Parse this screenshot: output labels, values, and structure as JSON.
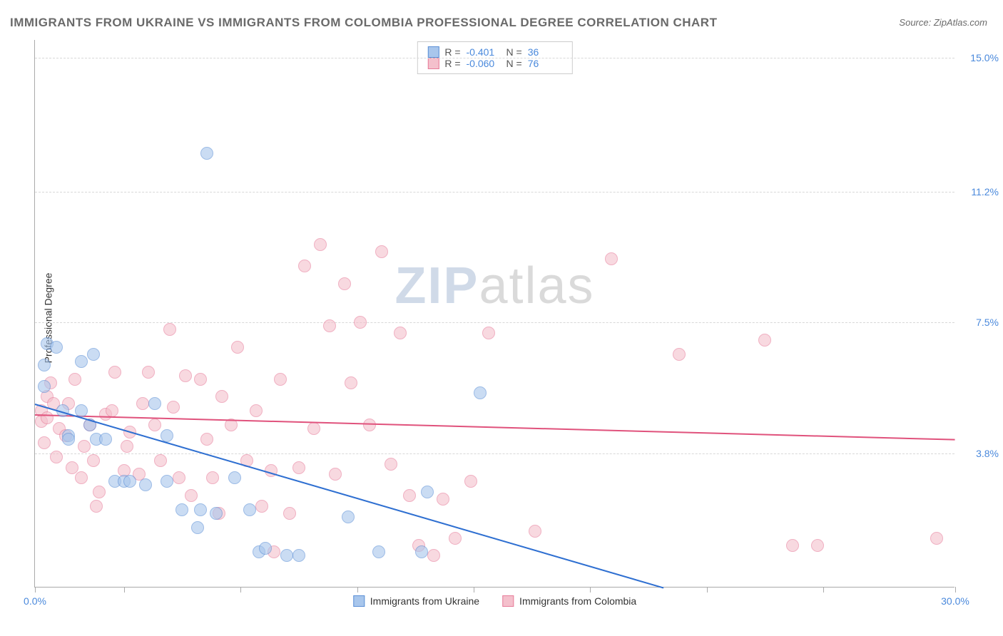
{
  "title": "IMMIGRANTS FROM UKRAINE VS IMMIGRANTS FROM COLOMBIA PROFESSIONAL DEGREE CORRELATION CHART",
  "source_label": "Source:",
  "source_name": "ZipAtlas.com",
  "ylabel": "Professional Degree",
  "watermark": {
    "part1": "ZIP",
    "part2": "atlas"
  },
  "chart": {
    "type": "scatter",
    "background_color": "#ffffff",
    "grid_color": "#d8d8d8",
    "axis_color": "#aaaaaa",
    "xlim": [
      0.0,
      30.0
    ],
    "ylim": [
      0.0,
      15.5
    ],
    "x_ticks": [
      0.0,
      2.9,
      6.7,
      10.5,
      14.3,
      18.1,
      21.9,
      25.7,
      30.0
    ],
    "x_labels": [
      {
        "v": 0.0,
        "t": "0.0%"
      },
      {
        "v": 30.0,
        "t": "30.0%"
      }
    ],
    "y_gridlines": [
      {
        "v": 3.8,
        "t": "3.8%"
      },
      {
        "v": 7.5,
        "t": "7.5%"
      },
      {
        "v": 11.2,
        "t": "11.2%"
      },
      {
        "v": 15.0,
        "t": "15.0%"
      }
    ],
    "marker_radius": 9,
    "marker_border_width": 1,
    "series": [
      {
        "name": "Immigrants from Ukraine",
        "fill": "#a8c6ec",
        "stroke": "#5b8fd6",
        "trend_color": "#2e6fd1",
        "trend": {
          "x1": 0.0,
          "y1": 5.2,
          "x2": 20.5,
          "y2": 0.0
        },
        "R": "-0.401",
        "N": "36",
        "points": [
          [
            0.3,
            6.3
          ],
          [
            0.3,
            5.7
          ],
          [
            0.4,
            6.9
          ],
          [
            0.7,
            6.8
          ],
          [
            0.9,
            5.0
          ],
          [
            1.1,
            4.3
          ],
          [
            1.1,
            4.2
          ],
          [
            1.5,
            6.4
          ],
          [
            1.5,
            5.0
          ],
          [
            1.8,
            4.6
          ],
          [
            1.9,
            6.6
          ],
          [
            2.0,
            4.2
          ],
          [
            2.3,
            4.2
          ],
          [
            2.6,
            3.0
          ],
          [
            2.9,
            3.0
          ],
          [
            3.1,
            3.0
          ],
          [
            3.6,
            2.9
          ],
          [
            3.9,
            5.2
          ],
          [
            4.3,
            3.0
          ],
          [
            4.3,
            4.3
          ],
          [
            4.8,
            2.2
          ],
          [
            5.3,
            1.7
          ],
          [
            5.4,
            2.2
          ],
          [
            5.6,
            12.3
          ],
          [
            5.9,
            2.1
          ],
          [
            6.5,
            3.1
          ],
          [
            7.0,
            2.2
          ],
          [
            7.3,
            1.0
          ],
          [
            7.5,
            1.1
          ],
          [
            8.2,
            0.9
          ],
          [
            8.6,
            0.9
          ],
          [
            10.2,
            2.0
          ],
          [
            11.2,
            1.0
          ],
          [
            12.6,
            1.0
          ],
          [
            12.8,
            2.7
          ],
          [
            14.5,
            5.5
          ]
        ]
      },
      {
        "name": "Immigrants from Colombia",
        "fill": "#f4c0cc",
        "stroke": "#e77c9a",
        "trend_color": "#e0527c",
        "trend": {
          "x1": 0.0,
          "y1": 4.9,
          "x2": 30.0,
          "y2": 4.2
        },
        "R": "-0.060",
        "N": "76",
        "points": [
          [
            0.2,
            5.0
          ],
          [
            0.2,
            4.7
          ],
          [
            0.3,
            4.1
          ],
          [
            0.4,
            4.8
          ],
          [
            0.4,
            5.4
          ],
          [
            0.6,
            5.2
          ],
          [
            0.7,
            3.7
          ],
          [
            0.8,
            4.5
          ],
          [
            1.0,
            4.3
          ],
          [
            1.1,
            5.2
          ],
          [
            1.2,
            3.4
          ],
          [
            1.5,
            3.1
          ],
          [
            1.6,
            4.0
          ],
          [
            1.8,
            4.6
          ],
          [
            1.9,
            3.6
          ],
          [
            2.1,
            2.7
          ],
          [
            2.3,
            4.9
          ],
          [
            2.5,
            5.0
          ],
          [
            2.6,
            6.1
          ],
          [
            2.9,
            3.3
          ],
          [
            3.1,
            4.4
          ],
          [
            3.4,
            3.2
          ],
          [
            3.5,
            5.2
          ],
          [
            3.7,
            6.1
          ],
          [
            3.9,
            4.6
          ],
          [
            4.1,
            3.6
          ],
          [
            4.4,
            7.3
          ],
          [
            4.5,
            5.1
          ],
          [
            4.7,
            3.1
          ],
          [
            4.9,
            6.0
          ],
          [
            5.1,
            2.6
          ],
          [
            5.4,
            5.9
          ],
          [
            5.6,
            4.2
          ],
          [
            5.8,
            3.1
          ],
          [
            6.1,
            5.4
          ],
          [
            6.4,
            4.6
          ],
          [
            6.6,
            6.8
          ],
          [
            6.9,
            3.6
          ],
          [
            7.2,
            5.0
          ],
          [
            7.4,
            2.3
          ],
          [
            7.7,
            3.3
          ],
          [
            7.8,
            1.0
          ],
          [
            8.0,
            5.9
          ],
          [
            8.3,
            2.1
          ],
          [
            8.6,
            3.4
          ],
          [
            8.8,
            9.1
          ],
          [
            9.1,
            4.5
          ],
          [
            9.3,
            9.7
          ],
          [
            9.6,
            7.4
          ],
          [
            9.8,
            3.2
          ],
          [
            10.1,
            8.6
          ],
          [
            10.3,
            5.8
          ],
          [
            10.6,
            7.5
          ],
          [
            10.9,
            4.6
          ],
          [
            11.3,
            9.5
          ],
          [
            11.6,
            3.5
          ],
          [
            11.9,
            7.2
          ],
          [
            12.2,
            2.6
          ],
          [
            12.5,
            1.2
          ],
          [
            13.0,
            0.9
          ],
          [
            13.3,
            2.5
          ],
          [
            13.7,
            1.4
          ],
          [
            14.2,
            3.0
          ],
          [
            14.8,
            7.2
          ],
          [
            16.3,
            1.6
          ],
          [
            18.8,
            9.3
          ],
          [
            21.0,
            6.6
          ],
          [
            23.8,
            7.0
          ],
          [
            24.7,
            1.2
          ],
          [
            25.5,
            1.2
          ],
          [
            29.4,
            1.4
          ],
          [
            3.0,
            4.0
          ],
          [
            1.3,
            5.9
          ],
          [
            2.0,
            2.3
          ],
          [
            6.0,
            2.1
          ],
          [
            0.5,
            5.8
          ]
        ]
      }
    ],
    "stats_box": {
      "r_label": "R =",
      "n_label": "N ="
    },
    "legend_labels": [
      "Immigrants from Ukraine",
      "Immigrants from Colombia"
    ]
  }
}
